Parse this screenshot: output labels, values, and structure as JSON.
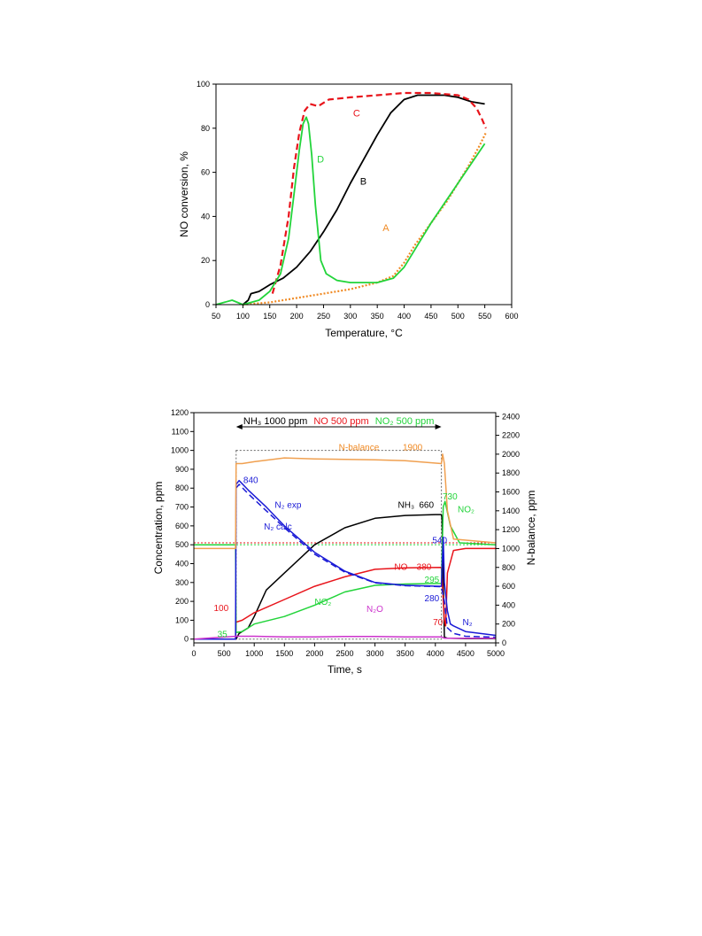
{
  "chart_data": [
    {
      "type": "line",
      "xlabel": "Temperature, °C",
      "ylabel": "NO conversion, %",
      "xlim": [
        50,
        600
      ],
      "ylim": [
        0,
        100
      ],
      "x_ticks": [
        "50",
        "100",
        "150",
        "200",
        "250",
        "300",
        "350",
        "400",
        "450",
        "500",
        "550",
        "600"
      ],
      "y_ticks": [
        "0",
        "20",
        "40",
        "60",
        "80",
        "100"
      ],
      "grid": false,
      "series": [
        {
          "name": "A",
          "color": "#F08A24",
          "style": "dotted",
          "x": [
            100,
            150,
            200,
            250,
            300,
            350,
            380,
            400,
            420,
            450,
            480,
            500,
            520,
            540,
            552
          ],
          "y": [
            0,
            1,
            3,
            5,
            7,
            10,
            13,
            19,
            27,
            37,
            47,
            55,
            63,
            72,
            78
          ]
        },
        {
          "name": "B",
          "color": "#000000",
          "style": "solid",
          "x": [
            100,
            110,
            115,
            130,
            150,
            175,
            200,
            225,
            250,
            275,
            300,
            325,
            350,
            375,
            400,
            425,
            450,
            475,
            500,
            525,
            550
          ],
          "y": [
            0,
            2,
            5,
            6,
            9,
            12,
            17,
            24,
            33,
            43,
            55,
            66,
            77,
            87,
            93,
            95,
            95,
            95,
            94,
            92,
            91
          ]
        },
        {
          "name": "C",
          "color": "#E8141B",
          "style": "dashed",
          "x": [
            155,
            170,
            185,
            195,
            205,
            215,
            225,
            240,
            260,
            300,
            350,
            400,
            450,
            500,
            520,
            535,
            545,
            552
          ],
          "y": [
            5,
            18,
            40,
            62,
            78,
            88,
            91,
            90,
            93,
            94,
            95,
            96,
            96,
            95,
            93,
            89,
            84,
            80
          ]
        },
        {
          "name": "D",
          "color": "#22D43A",
          "style": "solid",
          "x": [
            50,
            80,
            100,
            130,
            150,
            170,
            185,
            195,
            205,
            212,
            218,
            222,
            228,
            235,
            245,
            255,
            275,
            300,
            350,
            380,
            400,
            420,
            450,
            500,
            550
          ],
          "y": [
            0,
            2,
            0,
            2,
            6,
            14,
            30,
            50,
            70,
            82,
            85,
            82,
            68,
            45,
            20,
            14,
            11,
            10,
            10,
            12,
            17,
            25,
            37,
            55,
            73
          ]
        }
      ],
      "annotations": [
        {
          "text": "A",
          "x": 360,
          "y": 35,
          "color": "#F08A24"
        },
        {
          "text": "B",
          "x": 318,
          "y": 56,
          "color": "#000000"
        },
        {
          "text": "C",
          "x": 305,
          "y": 87,
          "color": "#E8141B"
        },
        {
          "text": "D",
          "x": 238,
          "y": 66,
          "color": "#22D43A"
        }
      ]
    },
    {
      "type": "line",
      "xlabel": "Time, s",
      "ylabel": "Concentration, ppm",
      "y2label": "N-balance, ppm",
      "xlim": [
        0,
        5000
      ],
      "ylim": [
        -20,
        1200
      ],
      "y2lim": [
        0,
        2440
      ],
      "x_ticks": [
        "0",
        "500",
        "1000",
        "1500",
        "2000",
        "2500",
        "3000",
        "3500",
        "4000",
        "4500",
        "5000"
      ],
      "y_ticks": [
        "0",
        "100",
        "200",
        "300",
        "400",
        "500",
        "600",
        "700",
        "800",
        "900",
        "1000",
        "1100",
        "1200"
      ],
      "y2_ticks": [
        "0",
        "200",
        "400",
        "600",
        "800",
        "1000",
        "1200",
        "1400",
        "1600",
        "1800",
        "2000",
        "2200",
        "2400"
      ],
      "grid": false,
      "header": {
        "arrow_from": 700,
        "arrow_to": 4100,
        "nh3_label": "NH₃ 1000 ppm",
        "no_label": "NO 500 ppm",
        "no2_label": "NO₂ 500 ppm"
      },
      "series": [
        {
          "name": "NH₃",
          "color": "#000000",
          "style": "solid",
          "axis": "left",
          "x": [
            0,
            690,
            700,
            750,
            900,
            1000,
            1200,
            1500,
            2000,
            2500,
            3000,
            3500,
            4000,
            4100,
            4110,
            4150,
            4200,
            4500,
            5000
          ],
          "y": [
            0,
            0,
            0,
            30,
            60,
            120,
            260,
            350,
            500,
            590,
            640,
            655,
            660,
            660,
            640,
            10,
            5,
            3,
            3
          ]
        },
        {
          "name": "NO",
          "color": "#E8141B",
          "style": "solid",
          "axis": "left",
          "x": [
            0,
            690,
            700,
            800,
            1000,
            1500,
            2000,
            2500,
            3000,
            3500,
            4100,
            4150,
            4170,
            4200,
            4300,
            4500,
            5000
          ],
          "y": [
            0,
            0,
            90,
            100,
            140,
            210,
            280,
            330,
            370,
            378,
            380,
            100,
            70,
            350,
            470,
            480,
            480
          ]
        },
        {
          "name": "NO₂",
          "color": "#22D43A",
          "style": "solid",
          "axis": "left",
          "x": [
            0,
            690,
            700,
            800,
            1000,
            1500,
            2000,
            2500,
            3000,
            3500,
            4100,
            4130,
            4160,
            4250,
            4400,
            5000
          ],
          "y": [
            500,
            500,
            35,
            40,
            80,
            120,
            180,
            250,
            285,
            292,
            295,
            700,
            730,
            600,
            510,
            500
          ]
        },
        {
          "name": "N₂ exp",
          "color": "#1A1AD6",
          "style": "solid",
          "axis": "left",
          "x": [
            0,
            690,
            700,
            750,
            900,
            1200,
            1500,
            2000,
            2500,
            3000,
            3500,
            4100,
            4130,
            4150,
            4200,
            4250,
            4300,
            4500,
            5000
          ],
          "y": [
            0,
            0,
            820,
            840,
            790,
            700,
            600,
            460,
            360,
            300,
            285,
            280,
            540,
            300,
            150,
            80,
            70,
            40,
            20
          ]
        },
        {
          "name": "N₂ calc",
          "color": "#1A1AD6",
          "style": "dashed",
          "axis": "left",
          "x": [
            700,
            750,
            900,
            1200,
            1500,
            2000,
            2500,
            3000,
            3500,
            4100,
            4150,
            4200,
            4300,
            4500,
            5000
          ],
          "y": [
            800,
            820,
            770,
            680,
            590,
            450,
            355,
            298,
            283,
            278,
            200,
            60,
            30,
            15,
            10
          ]
        },
        {
          "name": "N₂O",
          "color": "#CC33CC",
          "style": "solid",
          "axis": "left",
          "x": [
            0,
            700,
            1000,
            1500,
            2000,
            2500,
            3000,
            3500,
            4100,
            4150,
            5000
          ],
          "y": [
            0,
            15,
            15,
            12,
            12,
            14,
            14,
            12,
            12,
            5,
            5
          ]
        },
        {
          "name": "N-balance",
          "color": "#F0A050",
          "style": "solid",
          "axis": "right",
          "x": [
            0,
            690,
            700,
            800,
            1000,
            1500,
            2000,
            2500,
            3000,
            3500,
            4100,
            4120,
            4150,
            4200,
            4300,
            5000
          ],
          "y": [
            1000,
            1000,
            1900,
            1900,
            1920,
            1960,
            1950,
            1945,
            1940,
            1930,
            1900,
            2000,
            1900,
            1400,
            1100,
            1060
          ]
        }
      ],
      "reference_lines": [
        {
          "value": 500,
          "axis": "left",
          "color": "#22D43A",
          "style": "dotted"
        },
        {
          "value": 510,
          "axis": "left",
          "color": "#E8141B",
          "style": "dotted"
        },
        {
          "value": 1000,
          "axis": "left",
          "color": "#888888",
          "style": "dotted"
        }
      ],
      "annotations": [
        {
          "text": "N-balance",
          "x": 2400,
          "y": 1020,
          "color": "#F08A24"
        },
        {
          "text": "1900",
          "x": 3460,
          "y": 1020,
          "color": "#F08A24"
        },
        {
          "text": "840",
          "x": 820,
          "y": 845,
          "color": "#1A1AD6"
        },
        {
          "text": "N₂ exp",
          "x": 1340,
          "y": 715,
          "color": "#1A1AD6"
        },
        {
          "text": "N₂ calc",
          "x": 1160,
          "y": 600,
          "color": "#1A1AD6"
        },
        {
          "text": "NH₃",
          "x": 3380,
          "y": 715,
          "color": "#000000"
        },
        {
          "text": "660",
          "x": 3730,
          "y": 715,
          "color": "#000000"
        },
        {
          "text": "730",
          "x": 4120,
          "y": 758,
          "color": "#22D43A"
        },
        {
          "text": "NO₂",
          "x": 4370,
          "y": 692,
          "color": "#22D43A"
        },
        {
          "text": "540",
          "x": 3950,
          "y": 527,
          "color": "#1A1AD6"
        },
        {
          "text": "NO",
          "x": 3320,
          "y": 387,
          "color": "#E8141B"
        },
        {
          "text": "380",
          "x": 3690,
          "y": 387,
          "color": "#E8141B"
        },
        {
          "text": "295",
          "x": 3820,
          "y": 318,
          "color": "#22D43A"
        },
        {
          "text": "280",
          "x": 3820,
          "y": 220,
          "color": "#1A1AD6"
        },
        {
          "text": "NO₂",
          "x": 2000,
          "y": 200,
          "color": "#22D43A"
        },
        {
          "text": "N₂O",
          "x": 2860,
          "y": 163,
          "color": "#CC33CC"
        },
        {
          "text": "100",
          "x": 330,
          "y": 168,
          "color": "#E8141B"
        },
        {
          "text": "35",
          "x": 390,
          "y": 30,
          "color": "#22D43A"
        },
        {
          "text": "70",
          "x": 3960,
          "y": 92,
          "color": "#E8141B"
        },
        {
          "text": "N₂",
          "x": 4450,
          "y": 92,
          "color": "#1A1AD6"
        }
      ]
    }
  ]
}
